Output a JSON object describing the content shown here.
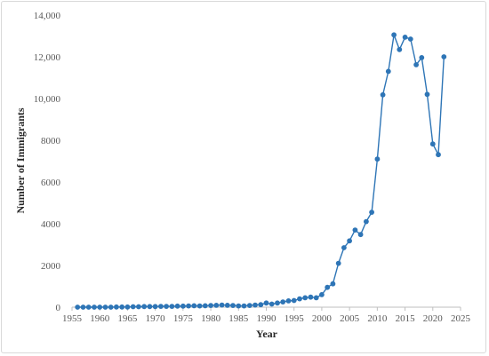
{
  "chart_data": {
    "type": "line",
    "title": "",
    "xlabel": "Year",
    "ylabel": "Number of Immigrants",
    "xlim": [
      1955,
      2025
    ],
    "ylim": [
      0,
      14000
    ],
    "x_ticks": [
      "1955",
      "1960",
      "1965",
      "1970",
      "1975",
      "1980",
      "1985",
      "1990",
      "1995",
      "2000",
      "2005",
      "2010",
      "2015",
      "2020",
      "2025"
    ],
    "y_ticks": [
      "0",
      "2000",
      "4000",
      "6000",
      "8000",
      "10,000",
      "12,000",
      "14,000"
    ],
    "grid": false,
    "legend": "none",
    "color": "#2e75b6",
    "series": [
      {
        "x": [
          1956,
          1957,
          1958,
          1959,
          1960,
          1961,
          1962,
          1963,
          1964,
          1965,
          1966,
          1967,
          1968,
          1969,
          1970,
          1971,
          1972,
          1973,
          1974,
          1975,
          1976,
          1977,
          1978,
          1979,
          1980,
          1981,
          1982,
          1983,
          1984,
          1985,
          1986,
          1987,
          1988,
          1989,
          1990,
          1991,
          1992,
          1993,
          1994,
          1995,
          1996,
          1997,
          1998,
          1999,
          2000,
          2001,
          2002,
          2003,
          2004,
          2005,
          2006,
          2007,
          2008,
          2009,
          2010,
          2011,
          2012,
          2013,
          2014,
          2015,
          2016,
          2017,
          2018,
          2019,
          2020,
          2021,
          2022
        ],
        "values": [
          0,
          0,
          0,
          0,
          0,
          0,
          0,
          10,
          10,
          10,
          20,
          20,
          30,
          30,
          30,
          40,
          40,
          40,
          50,
          50,
          60,
          70,
          60,
          70,
          80,
          90,
          100,
          90,
          80,
          60,
          60,
          80,
          100,
          120,
          200,
          150,
          200,
          250,
          300,
          320,
          400,
          450,
          480,
          450,
          600,
          950,
          1120,
          2100,
          2850,
          3180,
          3700,
          3480,
          4100,
          4550,
          7100,
          10180,
          11300,
          13050,
          12350,
          12940,
          12850,
          11620,
          11960,
          10200,
          7820,
          7310,
          12000
        ]
      }
    ]
  }
}
